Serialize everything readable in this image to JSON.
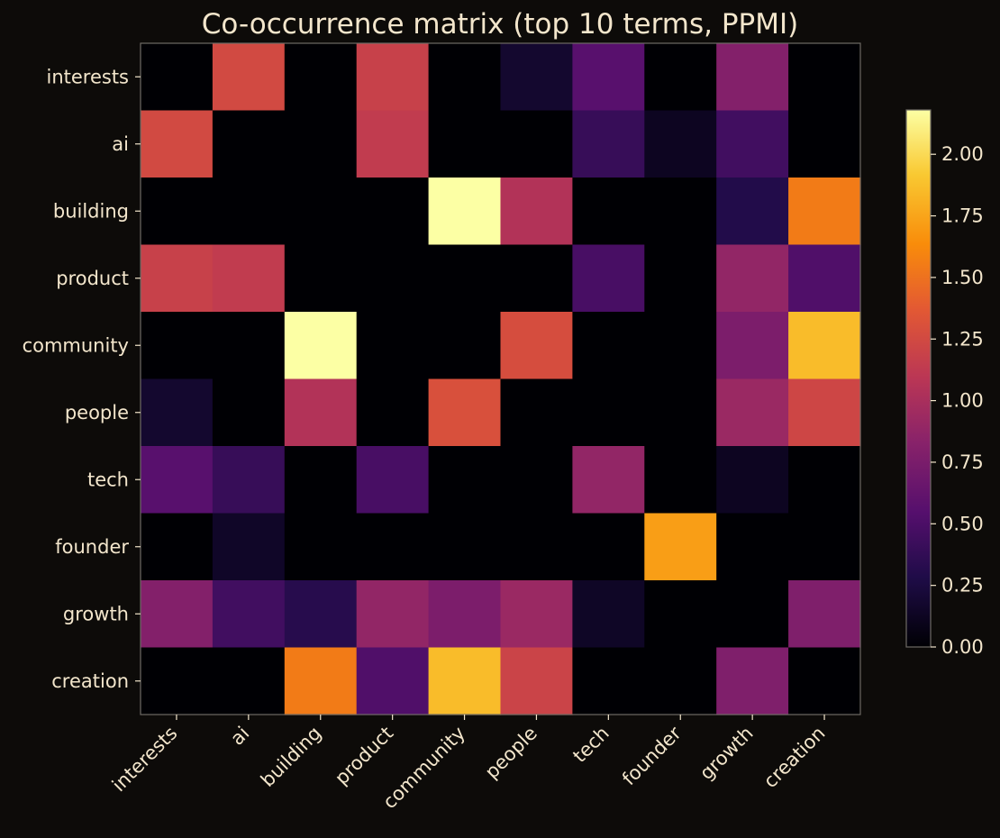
{
  "chart_data": {
    "type": "heatmap",
    "title": "Co-occurrence matrix (top 10 terms, PPMI)",
    "xlabel": "",
    "ylabel": "",
    "rows": [
      "interests",
      "ai",
      "building",
      "product",
      "community",
      "people",
      "tech",
      "founder",
      "growth",
      "creation"
    ],
    "columns": [
      "interests",
      "ai",
      "building",
      "product",
      "community",
      "people",
      "tech",
      "founder",
      "growth",
      "creation"
    ],
    "values": [
      [
        0.0,
        1.25,
        0.0,
        1.18,
        0.0,
        0.18,
        0.56,
        0.0,
        0.8,
        0.0
      ],
      [
        1.25,
        0.0,
        0.0,
        1.14,
        0.0,
        0.0,
        0.4,
        0.12,
        0.45,
        0.0
      ],
      [
        0.0,
        0.0,
        0.0,
        0.0,
        2.18,
        1.05,
        0.0,
        0.0,
        0.3,
        1.55
      ],
      [
        1.18,
        1.14,
        0.0,
        0.0,
        0.0,
        0.0,
        0.48,
        0.0,
        0.88,
        0.52
      ],
      [
        0.0,
        0.0,
        2.18,
        0.0,
        0.0,
        1.28,
        0.0,
        0.0,
        0.76,
        1.86
      ],
      [
        0.18,
        0.0,
        1.05,
        0.0,
        1.3,
        0.0,
        0.0,
        0.0,
        0.92,
        1.22
      ],
      [
        0.56,
        0.4,
        0.0,
        0.48,
        0.0,
        0.0,
        0.88,
        0.0,
        0.12,
        0.0
      ],
      [
        0.0,
        0.15,
        0.0,
        0.0,
        0.0,
        0.0,
        0.0,
        1.72,
        0.0,
        0.0
      ],
      [
        0.8,
        0.45,
        0.32,
        0.88,
        0.76,
        0.92,
        0.14,
        0.0,
        0.0,
        0.78
      ],
      [
        0.0,
        0.0,
        1.55,
        0.52,
        1.86,
        1.2,
        0.0,
        0.0,
        0.78,
        0.0
      ]
    ],
    "colormap": "inferno",
    "vmin": 0.0,
    "vmax": 2.18,
    "colorbar": {
      "ticks": [
        0.0,
        0.25,
        0.5,
        0.75,
        1.0,
        1.25,
        1.5,
        1.75,
        2.0
      ],
      "tick_labels": [
        "0.00",
        "0.25",
        "0.50",
        "0.75",
        "1.00",
        "1.25",
        "1.50",
        "1.75",
        "2.00"
      ],
      "placement": "right"
    },
    "grid": false,
    "colors": {
      "background": "#0d0b09",
      "text": "#f3e6cc",
      "frame": "#6e6a64"
    }
  }
}
